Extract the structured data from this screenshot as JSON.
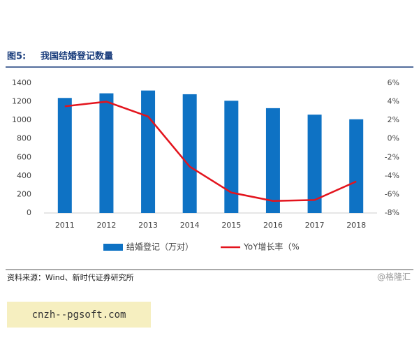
{
  "figure_label": "图5:",
  "source": "资料来源：Wind、新时代证券研究所",
  "watermark": "@格隆汇",
  "site": "cnzh--pgsoft.com",
  "chart_data": {
    "type": "bar",
    "title": "我国结婚登记数量",
    "categories": [
      "2011",
      "2012",
      "2013",
      "2014",
      "2015",
      "2016",
      "2017",
      "2018"
    ],
    "series": [
      {
        "name": "结婚登记（万对）",
        "type": "bar",
        "color": "#0e72c4",
        "values": [
          1240,
          1290,
          1320,
          1280,
          1210,
          1130,
          1060,
          1010
        ]
      },
      {
        "name": "YoY增长率（%",
        "type": "line",
        "axis": "y2",
        "color": "#e3141d",
        "values": [
          3.5,
          4.0,
          2.4,
          -3.0,
          -5.8,
          -6.7,
          -6.6,
          -4.6
        ]
      }
    ],
    "ylim": [
      0,
      1400
    ],
    "yticks": [
      0,
      200,
      400,
      600,
      800,
      1000,
      1200,
      1400
    ],
    "y2lim": [
      -8,
      6
    ],
    "y2ticks": [
      {
        "value": -8,
        "label": "-8%"
      },
      {
        "value": -6,
        "label": "-6%"
      },
      {
        "value": -4,
        "label": "-4%"
      },
      {
        "value": -2,
        "label": "-2%"
      },
      {
        "value": 0,
        "label": "0%"
      },
      {
        "value": 2,
        "label": "2%"
      },
      {
        "value": 4,
        "label": "4%"
      },
      {
        "value": 6,
        "label": "6%"
      }
    ],
    "legend": "bottom"
  }
}
